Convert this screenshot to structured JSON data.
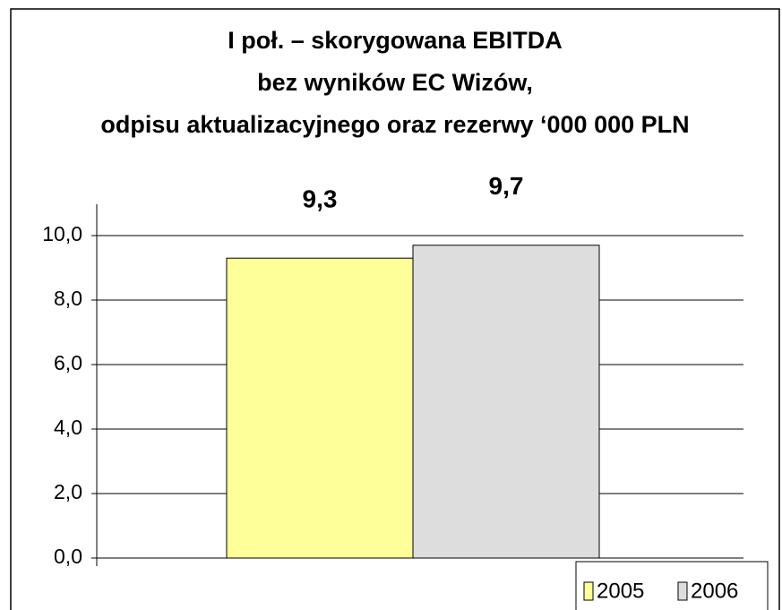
{
  "chart_data": {
    "type": "bar",
    "title": [
      "I poł. – skorygowana EBITDA",
      "bez wyników EC Wizów,",
      "odpisu aktualizacyjnego oraz rezerwy ‘000 000 PLN"
    ],
    "categories": [
      null
    ],
    "series": [
      {
        "name": "2005",
        "color": "#ffff99",
        "values": [
          9.3
        ],
        "value_labels": [
          "9,3"
        ]
      },
      {
        "name": "2006",
        "color": "#dddddd",
        "values": [
          9.7
        ],
        "value_labels": [
          "9,7"
        ]
      }
    ],
    "ylim": [
      0,
      10
    ],
    "yticks": [
      {
        "value": 0,
        "label": "0,0"
      },
      {
        "value": 2,
        "label": "2,0"
      },
      {
        "value": 4,
        "label": "4,0"
      },
      {
        "value": 6,
        "label": "6,0"
      },
      {
        "value": 8,
        "label": "8,0"
      },
      {
        "value": 10,
        "label": "10,0"
      }
    ],
    "grid": true,
    "legend": "bottom-right"
  }
}
